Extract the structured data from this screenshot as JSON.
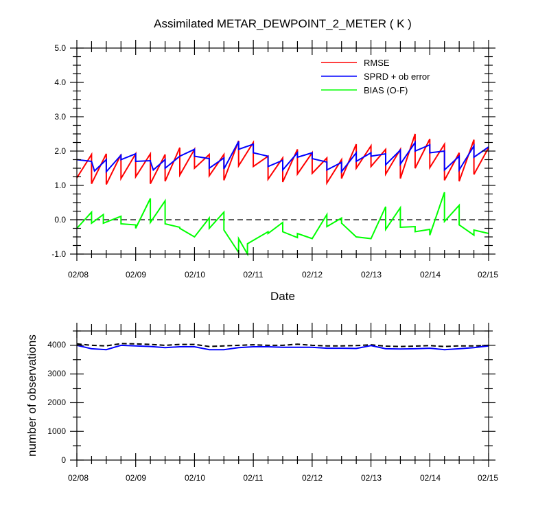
{
  "title": "Assimilated METAR_DEWPOINT_2_METER ( K )",
  "chart_data": [
    {
      "type": "line",
      "xlabel": "Date",
      "ylabel": "",
      "x_ticks": [
        "02/08",
        "02/09",
        "02/10",
        "02/11",
        "02/12",
        "02/13",
        "02/14",
        "02/15"
      ],
      "xlim": [
        "02/08",
        "02/15"
      ],
      "ylim": [
        -1.0,
        5.0
      ],
      "y_ticks": [
        "-1.0",
        "0.0",
        "1.0",
        "2.0",
        "3.0",
        "4.0",
        "5.0"
      ],
      "reference_line": 0,
      "legend_position": "top-right",
      "series": [
        {
          "name": "RMSE",
          "color": "#ff0000",
          "points": [
            [
              0,
              1.22
            ],
            [
              0.25,
              1.9
            ],
            [
              0.25,
              1.05
            ],
            [
              0.5,
              1.92
            ],
            [
              0.5,
              1.03
            ],
            [
              0.75,
              1.9
            ],
            [
              0.75,
              1.2
            ],
            [
              1,
              1.92
            ],
            [
              1,
              1.25
            ],
            [
              1.25,
              1.92
            ],
            [
              1.25,
              1.05
            ],
            [
              1.5,
              1.9
            ],
            [
              1.5,
              1.12
            ],
            [
              1.75,
              2.1
            ],
            [
              1.75,
              1.3
            ],
            [
              2,
              2.05
            ],
            [
              2,
              1.5
            ],
            [
              2.25,
              1.9
            ],
            [
              2.25,
              1.28
            ],
            [
              2.5,
              1.9
            ],
            [
              2.5,
              1.15
            ],
            [
              2.75,
              2.3
            ],
            [
              2.75,
              1.57
            ],
            [
              3,
              2.25
            ],
            [
              3,
              1.55
            ],
            [
              3.25,
              1.85
            ],
            [
              3.25,
              1.18
            ],
            [
              3.5,
              1.8
            ],
            [
              3.5,
              1.1
            ],
            [
              3.75,
              2.05
            ],
            [
              3.75,
              1.33
            ],
            [
              4,
              1.95
            ],
            [
              4,
              1.35
            ],
            [
              4.25,
              1.8
            ],
            [
              4.25,
              1.07
            ],
            [
              4.5,
              1.75
            ],
            [
              4.5,
              1.2
            ],
            [
              4.75,
              2.2
            ],
            [
              4.75,
              1.5
            ],
            [
              5,
              2.15
            ],
            [
              5,
              1.55
            ],
            [
              5.25,
              2.05
            ],
            [
              5.25,
              1.33
            ],
            [
              5.5,
              2.05
            ],
            [
              5.5,
              1.2
            ],
            [
              5.75,
              2.5
            ],
            [
              5.75,
              1.5
            ],
            [
              6,
              2.35
            ],
            [
              6,
              1.52
            ],
            [
              6.25,
              2.2
            ],
            [
              6.25,
              1.15
            ],
            [
              6.5,
              1.95
            ],
            [
              6.5,
              1.12
            ],
            [
              6.75,
              2.33
            ],
            [
              6.75,
              1.32
            ],
            [
              7,
              2.1
            ]
          ]
        },
        {
          "name": "SPRD + ob error",
          "color": "#0000ff",
          "points": [
            [
              0,
              1.75
            ],
            [
              0.25,
              1.7
            ],
            [
              0.25,
              1.7
            ],
            [
              0.3,
              1.42
            ],
            [
              0.5,
              1.75
            ],
            [
              0.5,
              1.4
            ],
            [
              0.75,
              1.88
            ],
            [
              0.75,
              1.75
            ],
            [
              1,
              1.92
            ],
            [
              1,
              1.7
            ],
            [
              1.25,
              1.72
            ],
            [
              1.25,
              1.7
            ],
            [
              1.3,
              1.45
            ],
            [
              1.5,
              1.75
            ],
            [
              1.5,
              1.5
            ],
            [
              1.75,
              1.85
            ],
            [
              1.75,
              1.85
            ],
            [
              2,
              2.05
            ],
            [
              2,
              1.85
            ],
            [
              2.25,
              1.78
            ],
            [
              2.25,
              1.5
            ],
            [
              2.5,
              1.8
            ],
            [
              2.5,
              1.48
            ],
            [
              2.75,
              2.28
            ],
            [
              2.75,
              2.05
            ],
            [
              3,
              2.2
            ],
            [
              3,
              1.95
            ],
            [
              3.25,
              1.85
            ],
            [
              3.25,
              1.55
            ],
            [
              3.5,
              1.73
            ],
            [
              3.5,
              1.45
            ],
            [
              3.75,
              1.95
            ],
            [
              3.75,
              1.82
            ],
            [
              4,
              1.95
            ],
            [
              4,
              1.78
            ],
            [
              4.25,
              1.68
            ],
            [
              4.25,
              1.45
            ],
            [
              4.5,
              1.67
            ],
            [
              4.5,
              1.4
            ],
            [
              4.75,
              1.95
            ],
            [
              4.75,
              1.7
            ],
            [
              5,
              1.95
            ],
            [
              5,
              1.85
            ],
            [
              5.25,
              1.92
            ],
            [
              5.25,
              1.6
            ],
            [
              5.5,
              2.03
            ],
            [
              5.5,
              1.62
            ],
            [
              5.75,
              2.25
            ],
            [
              5.75,
              2.0
            ],
            [
              6,
              2.18
            ],
            [
              6,
              1.95
            ],
            [
              6.25,
              2.0
            ],
            [
              6.25,
              1.45
            ],
            [
              6.5,
              1.85
            ],
            [
              6.5,
              1.45
            ],
            [
              6.75,
              2.15
            ],
            [
              6.75,
              1.82
            ],
            [
              7,
              2.12
            ]
          ]
        },
        {
          "name": "BIAS (O-F)",
          "color": "#00ff00",
          "points": [
            [
              0,
              -0.25
            ],
            [
              0.25,
              0.22
            ],
            [
              0.25,
              -0.1
            ],
            [
              0.45,
              0.15
            ],
            [
              0.45,
              -0.1
            ],
            [
              0.75,
              0.1
            ],
            [
              0.75,
              -0.12
            ],
            [
              1,
              -0.15
            ],
            [
              1,
              -0.25
            ],
            [
              1.25,
              0.62
            ],
            [
              1.25,
              -0.08
            ],
            [
              1.5,
              0.55
            ],
            [
              1.5,
              -0.12
            ],
            [
              1.75,
              -0.22
            ],
            [
              1.75,
              -0.25
            ],
            [
              2,
              -0.5
            ],
            [
              2,
              -0.5
            ],
            [
              2.25,
              0.05
            ],
            [
              2.25,
              -0.25
            ],
            [
              2.5,
              0.22
            ],
            [
              2.5,
              -0.3
            ],
            [
              2.75,
              -0.95
            ],
            [
              2.75,
              -0.55
            ],
            [
              2.9,
              -1.0
            ],
            [
              2.9,
              -0.7
            ],
            [
              3.25,
              -0.35
            ],
            [
              3.25,
              -0.4
            ],
            [
              3.5,
              -0.08
            ],
            [
              3.5,
              -0.35
            ],
            [
              3.75,
              -0.52
            ],
            [
              3.75,
              -0.4
            ],
            [
              4,
              -0.55
            ],
            [
              4,
              -0.55
            ],
            [
              4.25,
              0.15
            ],
            [
              4.25,
              -0.2
            ],
            [
              4.5,
              0.05
            ],
            [
              4.5,
              -0.1
            ],
            [
              4.75,
              -0.5
            ],
            [
              4.75,
              -0.5
            ],
            [
              5,
              -0.55
            ],
            [
              5,
              -0.55
            ],
            [
              5.25,
              0.38
            ],
            [
              5.25,
              -0.28
            ],
            [
              5.5,
              0.35
            ],
            [
              5.5,
              -0.22
            ],
            [
              5.75,
              -0.2
            ],
            [
              5.75,
              -0.35
            ],
            [
              6,
              -0.28
            ],
            [
              6,
              -0.45
            ],
            [
              6.25,
              0.8
            ],
            [
              6.25,
              -0.05
            ],
            [
              6.5,
              0.42
            ],
            [
              6.5,
              -0.15
            ],
            [
              6.75,
              -0.45
            ],
            [
              6.75,
              -0.3
            ],
            [
              7,
              -0.4
            ]
          ]
        }
      ]
    },
    {
      "type": "line",
      "xlabel": "",
      "ylabel": "number of observations",
      "x_ticks": [
        "02/08",
        "02/09",
        "02/10",
        "02/11",
        "02/12",
        "02/13",
        "02/14",
        "02/15"
      ],
      "xlim": [
        "02/08",
        "02/15"
      ],
      "ylim": [
        0,
        4500
      ],
      "y_ticks": [
        "0",
        "1000",
        "2000",
        "3000",
        "4000"
      ],
      "series": [
        {
          "name": "",
          "color": "#000000",
          "style": "dashed",
          "points": [
            [
              0,
              4050
            ],
            [
              0.25,
              4000
            ],
            [
              0.5,
              3980
            ],
            [
              0.75,
              4060
            ],
            [
              1,
              4050
            ],
            [
              1.25,
              4030
            ],
            [
              1.5,
              4000
            ],
            [
              1.75,
              4030
            ],
            [
              2,
              4030
            ],
            [
              2.25,
              3960
            ],
            [
              2.5,
              3980
            ],
            [
              2.75,
              4000
            ],
            [
              3,
              4020
            ],
            [
              3.25,
              4000
            ],
            [
              3.5,
              4000
            ],
            [
              3.75,
              4040
            ],
            [
              4,
              4000
            ],
            [
              4.25,
              3980
            ],
            [
              4.5,
              3980
            ],
            [
              4.75,
              3990
            ],
            [
              5,
              4020
            ],
            [
              5.25,
              3970
            ],
            [
              5.5,
              3960
            ],
            [
              5.75,
              3970
            ],
            [
              6,
              3990
            ],
            [
              6.25,
              3960
            ],
            [
              6.5,
              3980
            ],
            [
              6.75,
              3980
            ],
            [
              7,
              4000
            ]
          ]
        },
        {
          "name": "",
          "color": "#0000ff",
          "style": "solid",
          "points": [
            [
              0,
              4000
            ],
            [
              0.25,
              3880
            ],
            [
              0.5,
              3850
            ],
            [
              0.75,
              4000
            ],
            [
              1,
              3980
            ],
            [
              1.25,
              3960
            ],
            [
              1.5,
              3920
            ],
            [
              1.75,
              3950
            ],
            [
              2,
              3950
            ],
            [
              2.25,
              3850
            ],
            [
              2.5,
              3850
            ],
            [
              2.75,
              3920
            ],
            [
              3,
              3950
            ],
            [
              3.25,
              3950
            ],
            [
              3.5,
              3930
            ],
            [
              3.75,
              3930
            ],
            [
              4,
              3930
            ],
            [
              4.25,
              3900
            ],
            [
              4.5,
              3900
            ],
            [
              4.75,
              3890
            ],
            [
              5,
              3990
            ],
            [
              5.25,
              3880
            ],
            [
              5.5,
              3870
            ],
            [
              5.75,
              3880
            ],
            [
              6,
              3900
            ],
            [
              6.25,
              3850
            ],
            [
              6.5,
              3880
            ],
            [
              6.75,
              3920
            ],
            [
              7,
              3980
            ]
          ]
        }
      ]
    }
  ]
}
